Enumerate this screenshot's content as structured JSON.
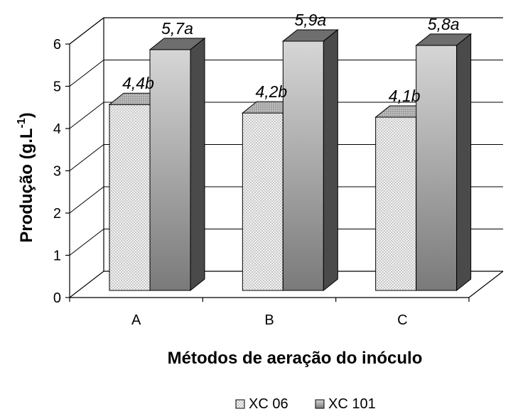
{
  "chart_data": {
    "type": "bar",
    "categories": [
      "A",
      "B",
      "C"
    ],
    "series": [
      {
        "name": "XC 06",
        "values": [
          4.4,
          4.2,
          4.1
        ],
        "labels": [
          "4,4b",
          "4,2b",
          "4,1b"
        ],
        "color": "#e6e6e6"
      },
      {
        "name": "XC 101",
        "values": [
          5.7,
          5.9,
          5.8
        ],
        "labels": [
          "5,7a",
          "5,9a",
          "5,8a"
        ],
        "color": "#9c9c9c"
      }
    ],
    "title": "",
    "xlabel": "Métodos de aeração do inóculo",
    "ylabel_main": "Produção (g.L",
    "ylabel_sup": "-1",
    "ylabel_close": ")",
    "ylim": [
      0,
      6
    ],
    "yticks": [
      "0",
      "1",
      "2",
      "3",
      "4",
      "5",
      "6"
    ],
    "grid": true,
    "legend_position": "bottom",
    "three_d": true
  }
}
